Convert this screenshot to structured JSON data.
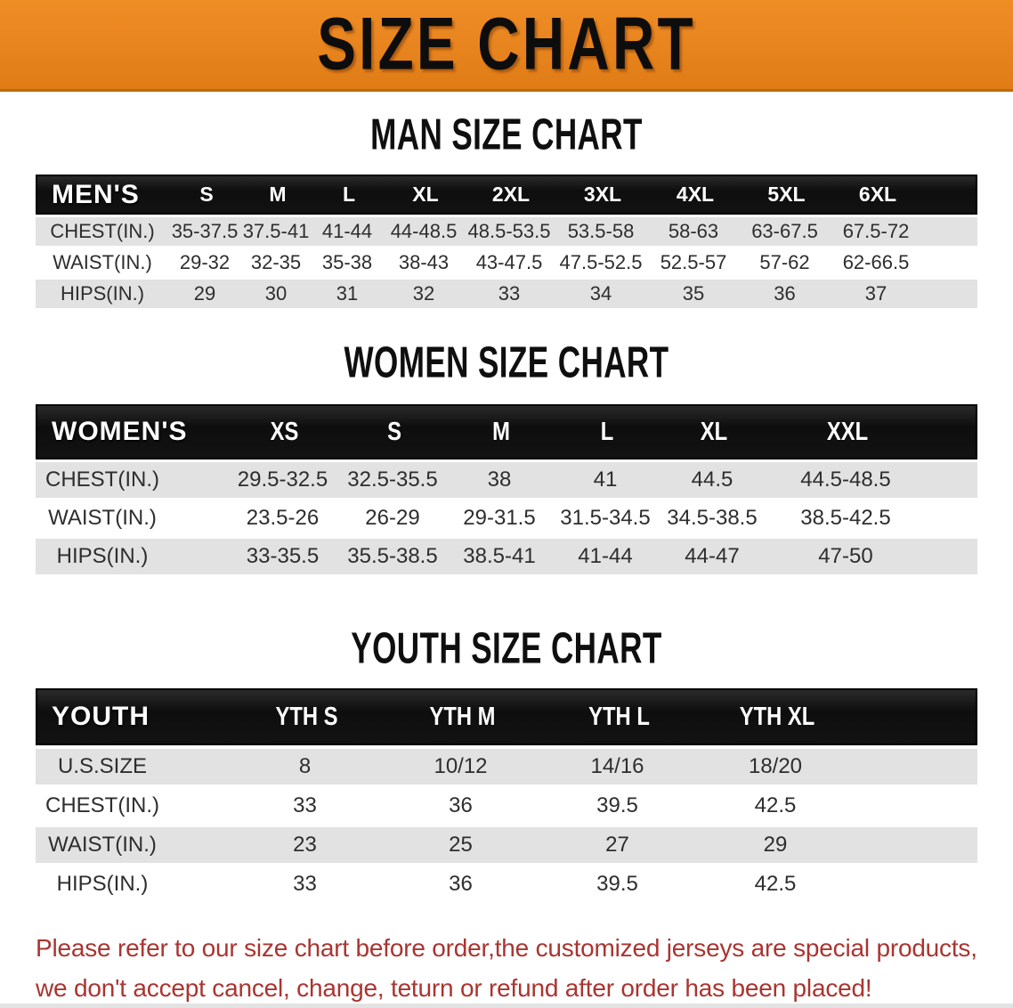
{
  "banner": {
    "title": "SIZE CHART"
  },
  "men": {
    "heading": "MAN SIZE CHART",
    "corner": "MEN'S",
    "cols": [
      "S",
      "M",
      "L",
      "XL",
      "2XL",
      "3XL",
      "4XL",
      "5XL",
      "6XL"
    ],
    "rows": [
      {
        "label": "CHEST(IN.)",
        "values": [
          "35-37.5",
          "37.5-41",
          "41-44",
          "44-48.5",
          "48.5-53.5",
          "53.5-58",
          "58-63",
          "63-67.5",
          "67.5-72"
        ]
      },
      {
        "label": "WAIST(IN.)",
        "values": [
          "29-32",
          "32-35",
          "35-38",
          "38-43",
          "43-47.5",
          "47.5-52.5",
          "52.5-57",
          "57-62",
          "62-66.5"
        ]
      },
      {
        "label": "HIPS(IN.)",
        "values": [
          "29",
          "30",
          "31",
          "32",
          "33",
          "34",
          "35",
          "36",
          "37"
        ]
      }
    ]
  },
  "women": {
    "heading": "WOMEN SIZE CHART",
    "corner": "WOMEN'S",
    "cols": [
      "XS",
      "S",
      "M",
      "L",
      "XL",
      "XXL"
    ],
    "rows": [
      {
        "label": "CHEST(IN.)",
        "values": [
          "29.5-32.5",
          "32.5-35.5",
          "38",
          "41",
          "44.5",
          "44.5-48.5"
        ]
      },
      {
        "label": "WAIST(IN.)",
        "values": [
          "23.5-26",
          "26-29",
          "29-31.5",
          "31.5-34.5",
          "34.5-38.5",
          "38.5-42.5"
        ]
      },
      {
        "label": "HIPS(IN.)",
        "values": [
          "33-35.5",
          "35.5-38.5",
          "38.5-41",
          "41-44",
          "44-47",
          "47-50"
        ]
      }
    ]
  },
  "youth": {
    "heading": "YOUTH SIZE CHART",
    "corner": "YOUTH",
    "cols": [
      "YTH S",
      "YTH M",
      "YTH L",
      "YTH XL"
    ],
    "rows": [
      {
        "label": "U.S.SIZE",
        "values": [
          "8",
          "10/12",
          "14/16",
          "18/20"
        ]
      },
      {
        "label": "CHEST(IN.)",
        "values": [
          "33",
          "36",
          "39.5",
          "42.5"
        ]
      },
      {
        "label": "WAIST(IN.)",
        "values": [
          "23",
          "25",
          "27",
          "29"
        ]
      },
      {
        "label": "HIPS(IN.)",
        "values": [
          "33",
          "36",
          "39.5",
          "42.5"
        ]
      }
    ]
  },
  "footer": {
    "line1": "Please refer to our size chart before order,the customized jerseys are special products,",
    "line2": "we don't accept cancel, change, teturn or refund after order has been placed!"
  },
  "colors": {
    "banner_orange": "#E8841E",
    "header_black": "#141414",
    "row_gray": "#E2E2E2",
    "note_red": "#A93531"
  }
}
